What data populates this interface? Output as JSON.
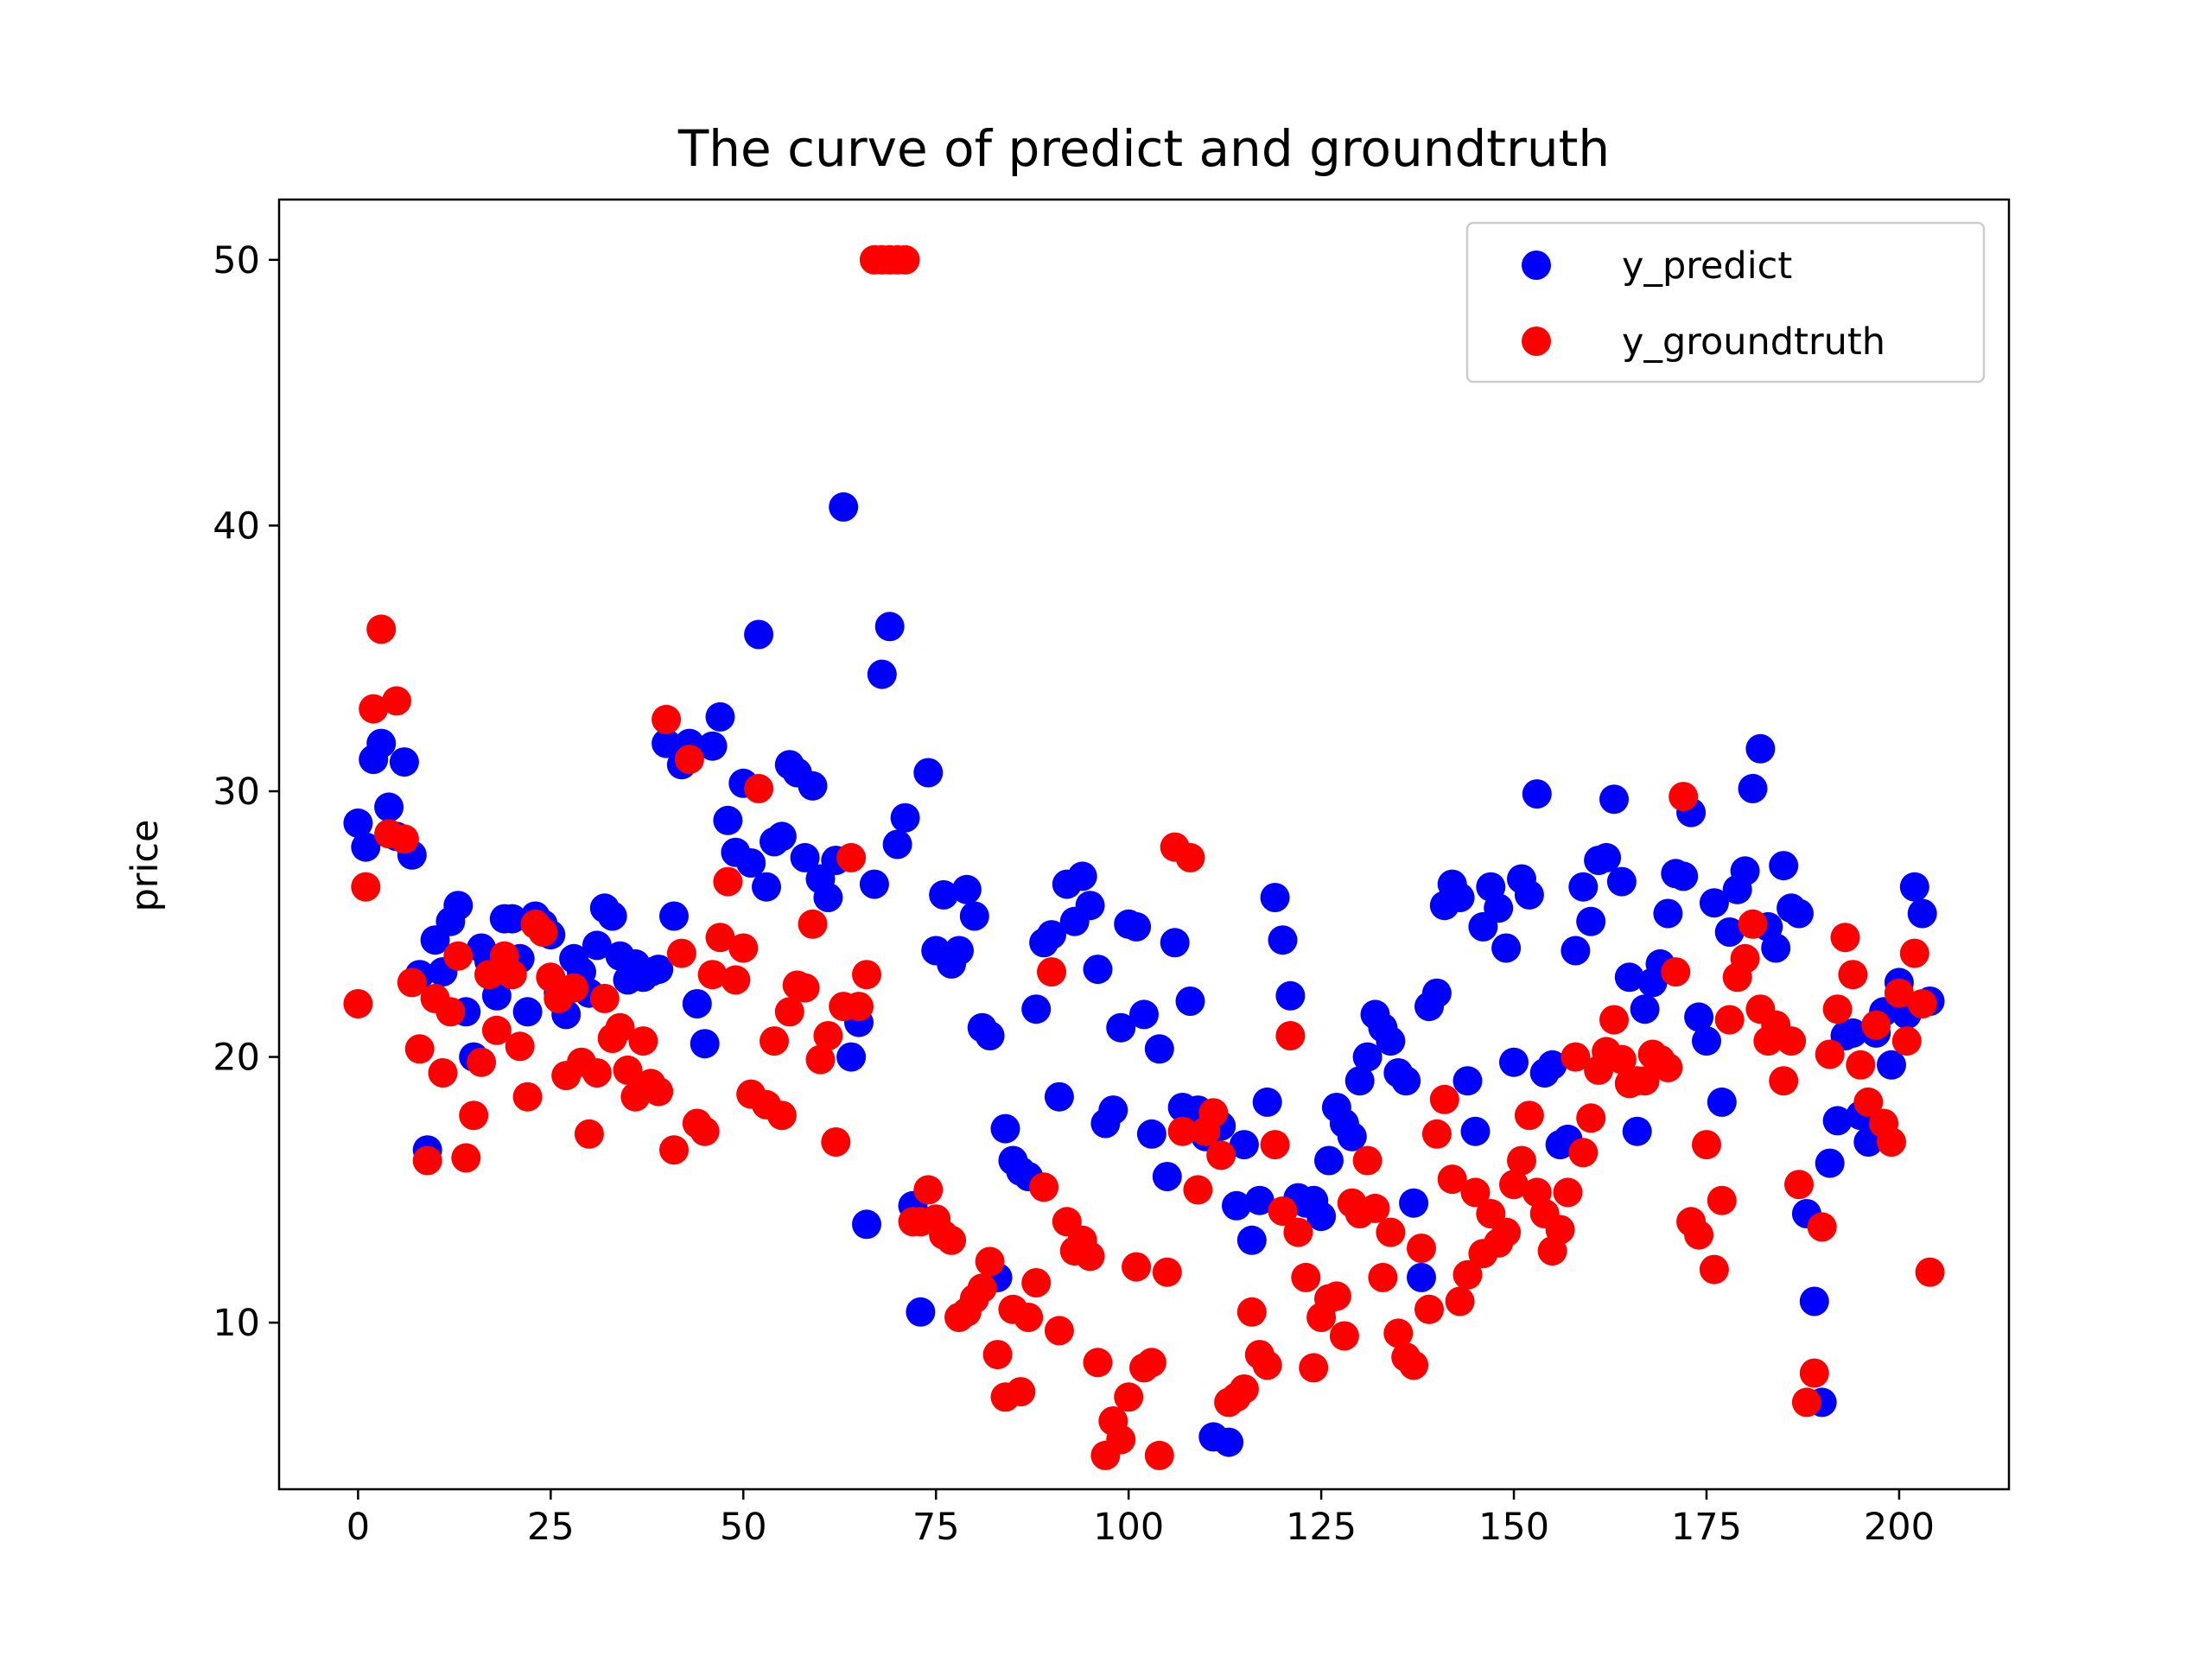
{
  "chart_data": {
    "type": "scatter",
    "title": "The curve of predict and groundtruth",
    "xlabel": "",
    "ylabel": "price",
    "xlim": [
      -10.25,
      214.25
    ],
    "ylim": [
      3.73,
      52.27
    ],
    "x_ticks": [
      0,
      25,
      50,
      75,
      100,
      125,
      150,
      175,
      200
    ],
    "y_ticks": [
      10,
      20,
      30,
      40,
      50
    ],
    "grid": false,
    "legend_position": "top-right",
    "legend": [
      "y_predict",
      "y_groundtruth"
    ],
    "colors": {
      "y_predict": "#0000ff",
      "y_groundtruth": "#ff0000"
    },
    "series": [
      {
        "name": "y_predict",
        "color": "#0000ff",
        "x": [
          0,
          1,
          2,
          3,
          4,
          5,
          6,
          7,
          8,
          9,
          10,
          11,
          12,
          13,
          14,
          15,
          16,
          17,
          18,
          19,
          20,
          21,
          22,
          23,
          24,
          25,
          26,
          27,
          28,
          29,
          30,
          31,
          32,
          33,
          34,
          35,
          36,
          37,
          38,
          39,
          40,
          41,
          42,
          43,
          44,
          45,
          46,
          47,
          48,
          49,
          50,
          51,
          52,
          53,
          54,
          55,
          56,
          57,
          58,
          59,
          60,
          61,
          62,
          63,
          64,
          65,
          66,
          67,
          68,
          69,
          70,
          71,
          72,
          73,
          74,
          75,
          76,
          77,
          78,
          79,
          80,
          81,
          82,
          83,
          84,
          85,
          86,
          87,
          88,
          89,
          90,
          91,
          92,
          93,
          94,
          95,
          96,
          97,
          98,
          99,
          100,
          101,
          102,
          103,
          104,
          105,
          106,
          107,
          108,
          109,
          110,
          111,
          112,
          113,
          114,
          115,
          116,
          117,
          118,
          119,
          120,
          121,
          122,
          123,
          124,
          125,
          126,
          127,
          128,
          129,
          130,
          131,
          132,
          133,
          134,
          135,
          136,
          137,
          138,
          139,
          140,
          141,
          142,
          143,
          144,
          145,
          146,
          147,
          148,
          149,
          150,
          151,
          152,
          153,
          154,
          155,
          156,
          157,
          158,
          159,
          160,
          161,
          162,
          163,
          164,
          165,
          166,
          167,
          168,
          169,
          170,
          171,
          172,
          173,
          174,
          175,
          176,
          177,
          178,
          179,
          180,
          181,
          182,
          183,
          184,
          185,
          186,
          187,
          188,
          189,
          190,
          191,
          192,
          193,
          194,
          195,
          196,
          197,
          198,
          199,
          200,
          201,
          202,
          203,
          204
        ],
        "y": [
          28.8,
          27.9,
          31.2,
          31.8,
          29.4,
          28.3,
          31.1,
          27.6,
          23.1,
          16.5,
          24.4,
          23.2,
          25.1,
          25.7,
          21.7,
          20.0,
          24.1,
          23.6,
          22.3,
          25.2,
          25.2,
          23.7,
          21.7,
          25.3,
          25.0,
          24.6,
          22.4,
          21.6,
          23.7,
          23.2,
          22.4,
          24.2,
          25.6,
          25.3,
          23.8,
          22.9,
          23.5,
          23.0,
          23.2,
          23.3,
          31.8,
          25.3,
          31.0,
          31.8,
          22.0,
          20.5,
          31.7,
          32.8,
          28.9,
          27.7,
          30.3,
          27.3,
          35.9,
          26.4,
          28.1,
          28.3,
          31.0,
          30.7,
          27.5,
          30.2,
          26.7,
          26.0,
          27.4,
          40.7,
          20.0,
          21.3,
          13.7,
          26.5,
          34.4,
          36.2,
          28.0,
          29.0,
          14.4,
          10.4,
          30.7,
          24.0,
          26.1,
          23.5,
          24.0,
          26.3,
          25.3,
          21.1,
          20.8,
          11.7,
          17.3,
          16.1,
          15.7,
          15.5,
          21.8,
          24.3,
          24.6,
          18.5,
          26.5,
          25.1,
          26.8,
          25.7,
          23.3,
          17.5,
          18.0,
          21.1,
          25.0,
          24.9,
          21.6,
          17.1,
          20.3,
          15.5,
          24.3,
          18.1,
          22.1,
          18.0,
          17.0,
          5.7,
          17.4,
          5.5,
          14.4,
          16.7,
          13.1,
          14.6,
          18.3,
          26.0,
          24.4,
          22.3,
          14.7,
          14.5,
          14.6,
          14.0,
          16.1,
          18.1,
          17.5,
          17.0,
          19.1,
          20.0,
          21.6,
          21.1,
          20.6,
          19.4,
          19.1,
          14.5,
          11.7,
          21.9,
          22.4,
          25.7,
          26.5,
          26.0,
          19.1,
          17.2,
          24.9,
          26.4,
          25.6,
          24.1,
          19.8,
          26.7,
          26.1,
          29.9,
          19.4,
          19.7,
          16.7,
          16.9,
          24.0,
          26.4,
          25.1,
          27.4,
          27.5,
          29.7,
          26.6,
          23.0,
          17.2,
          21.8,
          22.8,
          23.5,
          25.4,
          26.9,
          26.8,
          29.2,
          21.5,
          20.6,
          25.8,
          18.3,
          24.7,
          26.3,
          27.0,
          30.1,
          31.6,
          24.9,
          24.1,
          27.2,
          25.6,
          25.4,
          14.1,
          10.8,
          7.0,
          16.0,
          17.6,
          20.8,
          20.9,
          17.8,
          16.8,
          20.9,
          21.7,
          19.7,
          22.8,
          21.6,
          26.4,
          25.4,
          22.1
        ]
      },
      {
        "name": "y_groundtruth",
        "color": "#ff0000",
        "x": [
          0,
          1,
          2,
          3,
          4,
          5,
          6,
          7,
          8,
          9,
          10,
          11,
          12,
          13,
          14,
          15,
          16,
          17,
          18,
          19,
          20,
          21,
          22,
          23,
          24,
          25,
          26,
          27,
          28,
          29,
          30,
          31,
          32,
          33,
          34,
          35,
          36,
          37,
          38,
          39,
          40,
          41,
          42,
          43,
          44,
          45,
          46,
          47,
          48,
          49,
          50,
          51,
          52,
          53,
          54,
          55,
          56,
          57,
          58,
          59,
          60,
          61,
          62,
          63,
          64,
          65,
          66,
          67,
          68,
          69,
          70,
          71,
          72,
          73,
          74,
          75,
          76,
          77,
          78,
          79,
          80,
          81,
          82,
          83,
          84,
          85,
          86,
          87,
          88,
          89,
          90,
          91,
          92,
          93,
          94,
          95,
          96,
          97,
          98,
          99,
          100,
          101,
          102,
          103,
          104,
          105,
          106,
          107,
          108,
          109,
          110,
          111,
          112,
          113,
          114,
          115,
          116,
          117,
          118,
          119,
          120,
          121,
          122,
          123,
          124,
          125,
          126,
          127,
          128,
          129,
          130,
          131,
          132,
          133,
          134,
          135,
          136,
          137,
          138,
          139,
          140,
          141,
          142,
          143,
          144,
          145,
          146,
          147,
          148,
          149,
          150,
          151,
          152,
          153,
          154,
          155,
          156,
          157,
          158,
          159,
          160,
          161,
          162,
          163,
          164,
          165,
          166,
          167,
          168,
          169,
          170,
          171,
          172,
          173,
          174,
          175,
          176,
          177,
          178,
          179,
          180,
          181,
          182,
          183,
          184,
          185,
          186,
          187,
          188,
          189,
          190,
          191,
          192,
          193,
          194,
          195,
          196,
          197,
          198,
          199,
          200,
          201,
          202,
          203,
          204
        ],
        "y": [
          22.0,
          26.4,
          33.1,
          36.1,
          28.4,
          33.4,
          28.2,
          22.8,
          20.3,
          16.1,
          22.2,
          19.4,
          21.7,
          23.8,
          16.2,
          17.8,
          19.8,
          23.1,
          21.0,
          23.8,
          23.1,
          20.4,
          18.5,
          25.0,
          24.7,
          23.0,
          22.2,
          19.3,
          22.6,
          19.8,
          17.1,
          19.4,
          22.2,
          20.7,
          21.1,
          19.5,
          18.5,
          20.6,
          19.0,
          18.7,
          32.7,
          16.5,
          23.9,
          31.2,
          17.5,
          17.2,
          23.1,
          24.5,
          26.6,
          22.9,
          24.1,
          18.6,
          30.1,
          18.2,
          20.6,
          17.8,
          21.7,
          22.7,
          22.6,
          25.0,
          19.9,
          20.8,
          16.8,
          21.9,
          27.5,
          21.9,
          23.1,
          50.0,
          50.0,
          50.0,
          50.0,
          50.0,
          13.8,
          13.8,
          15.0,
          13.9,
          13.3,
          13.1,
          10.2,
          10.4,
          10.9,
          11.3,
          12.3,
          8.8,
          7.2,
          10.5,
          7.4,
          10.2,
          11.5,
          15.1,
          23.2,
          9.7,
          13.8,
          12.7,
          13.1,
          12.5,
          8.5,
          5.0,
          6.3,
          5.6,
          7.2,
          12.1,
          8.3,
          8.5,
          5.0,
          11.9,
          27.9,
          17.2,
          27.5,
          15.0,
          17.2,
          17.9,
          16.3,
          7.0,
          7.2,
          7.5,
          10.4,
          8.8,
          8.4,
          16.7,
          14.2,
          20.8,
          13.4,
          11.7,
          8.3,
          10.2,
          10.9,
          11.0,
          9.5,
          14.5,
          14.1,
          16.1,
          14.3,
          11.7,
          13.4,
          9.6,
          8.7,
          8.4,
          12.8,
          10.5,
          17.1,
          18.4,
          15.4,
          10.8,
          11.8,
          14.9,
          12.6,
          14.1,
          13.0,
          13.4,
          15.2,
          16.1,
          17.8,
          14.9,
          14.1,
          12.7,
          13.5,
          14.9,
          20.0,
          16.4,
          17.7,
          19.5,
          20.2,
          21.4,
          19.9,
          19.0,
          19.1,
          19.1,
          20.1,
          19.9,
          19.6,
          23.2,
          29.8,
          13.8,
          13.3,
          16.7,
          12.0,
          14.6,
          21.4,
          23.0,
          23.7,
          25.0,
          21.8,
          20.6,
          21.2,
          19.1,
          20.6,
          15.2,
          7.0,
          8.1,
          13.6,
          20.1,
          21.8,
          24.5,
          23.1,
          19.7,
          18.3,
          21.2,
          17.5,
          16.8,
          22.4,
          20.6,
          23.9,
          22.0,
          11.9
        ]
      }
    ]
  }
}
